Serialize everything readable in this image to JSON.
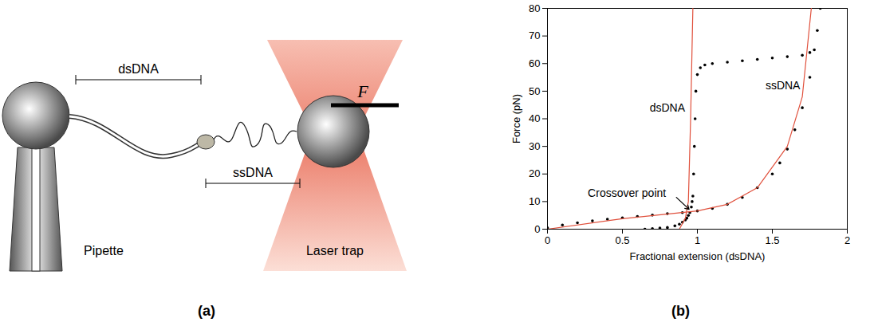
{
  "diagram": {
    "caption": "(a)",
    "labels": {
      "dsdna": "dsDNA",
      "ssdna": "ssDNA",
      "pipette": "Pipette",
      "laser_trap": "Laser trap",
      "force": "F"
    }
  },
  "chart_data": {
    "type": "scatter",
    "caption": "(b)",
    "x_label": "Fractional extension (dsDNA)",
    "y_label": "Force (pN)",
    "xlim": [
      0,
      2
    ],
    "xticks": [
      0,
      0.5,
      1,
      1.5,
      2
    ],
    "ylim": [
      0,
      80
    ],
    "yticks": [
      0,
      10,
      20,
      30,
      40,
      50,
      60,
      70,
      80
    ],
    "grid": false,
    "series": [
      {
        "type": "scatter",
        "marker": "circle",
        "color": "#000000",
        "x": [
          0.65,
          0.7,
          0.75,
          0.8,
          0.85,
          0.88,
          0.9,
          0.92,
          0.93,
          0.94,
          0.95,
          0.96,
          0.965,
          0.97,
          0.975,
          0.98,
          0.985,
          0.99,
          1.0,
          1.02,
          1.05,
          1.1,
          1.2,
          1.3,
          1.4,
          1.5,
          1.6,
          1.7,
          1.75
        ],
        "values": [
          0,
          0.2,
          0.4,
          0.6,
          1.2,
          1.8,
          2.5,
          3.3,
          4,
          5,
          6,
          8,
          10,
          12,
          20,
          30,
          40,
          50,
          56,
          58.5,
          59.5,
          60,
          60.5,
          61,
          61.5,
          62,
          62.5,
          63,
          64
        ]
      },
      {
        "type": "scatter",
        "marker": "circle",
        "color": "#000000",
        "x": [
          0,
          0.1,
          0.2,
          0.3,
          0.4,
          0.5,
          0.6,
          0.7,
          0.8,
          0.9,
          1.0,
          1.1,
          1.2,
          1.3,
          1.4,
          1.5,
          1.55,
          1.6,
          1.65,
          1.7,
          1.75,
          1.78,
          1.8,
          1.82
        ],
        "values": [
          0.5,
          1.5,
          2.3,
          3,
          3.6,
          4.1,
          4.6,
          5.1,
          5.6,
          6,
          6.6,
          7.5,
          9,
          11.5,
          15,
          20,
          24,
          29,
          36,
          44,
          55,
          65,
          72,
          80
        ]
      },
      {
        "type": "line",
        "line_style": "solid",
        "color": "#e0503c",
        "x": [
          0.88,
          0.92,
          0.94,
          0.955,
          0.97
        ],
        "values": [
          0,
          4,
          10,
          40,
          80
        ]
      },
      {
        "type": "line",
        "line_style": "solid",
        "color": "#e0503c",
        "x": [
          0,
          0.5,
          1.0,
          1.2,
          1.4,
          1.6,
          1.7,
          1.76
        ],
        "values": [
          0,
          3.8,
          6.6,
          9,
          15,
          30,
          48,
          80
        ]
      }
    ],
    "annotations": [
      {
        "text": "dsDNA",
        "x": 0.8,
        "y": 44
      },
      {
        "text": "ssDNA",
        "x": 1.57,
        "y": 52
      },
      {
        "text": "Crossover point",
        "x": 0.53,
        "y": 13,
        "arrow_from": [
          0.86,
          11.5
        ],
        "arrow_to": [
          0.945,
          7.2
        ]
      }
    ]
  }
}
